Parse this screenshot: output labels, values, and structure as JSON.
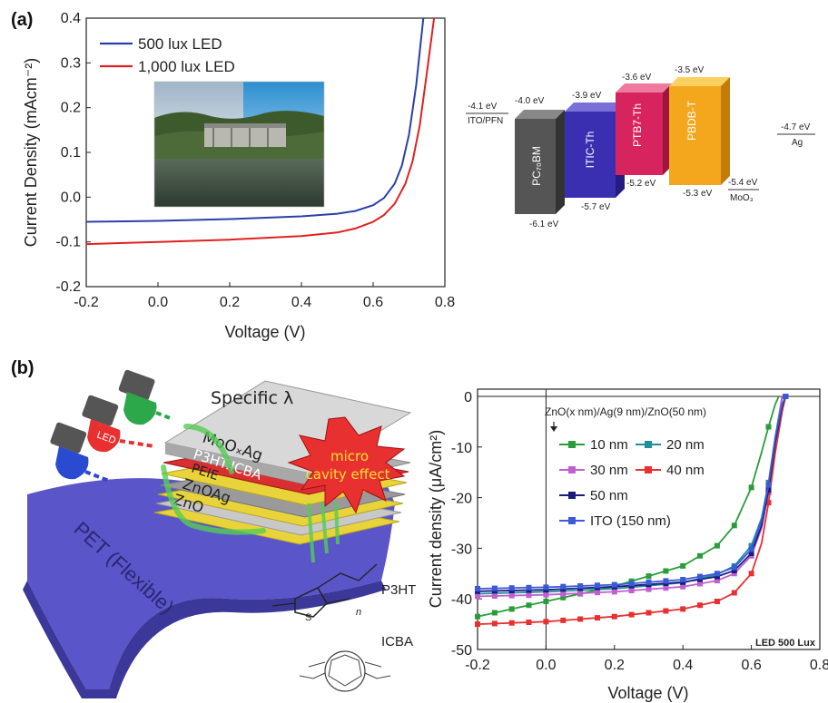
{
  "panels": {
    "a": "(a)",
    "b": "(b)"
  },
  "chart_data": [
    {
      "type": "line",
      "xlabel": "Voltage (V)",
      "ylabel": "Current Density (mAcm⁻²)",
      "xlim": [
        -0.2,
        0.8
      ],
      "ylim": [
        -0.2,
        0.4
      ],
      "xticks": [
        "-0.2",
        "0.0",
        "0.2",
        "0.4",
        "0.6",
        "0.8"
      ],
      "yticks": [
        "-0.2",
        "-0.1",
        "0.0",
        "0.1",
        "0.2",
        "0.3",
        "0.4"
      ],
      "legend_position": "top-left",
      "series": [
        {
          "name": "500 lux LED",
          "color": "#2b3fa8",
          "x": [
            -0.2,
            0.0,
            0.2,
            0.4,
            0.5,
            0.55,
            0.6,
            0.63,
            0.66,
            0.68,
            0.7,
            0.72,
            0.74
          ],
          "y": [
            -0.055,
            -0.053,
            -0.049,
            -0.043,
            -0.037,
            -0.031,
            -0.018,
            -0.002,
            0.03,
            0.07,
            0.14,
            0.25,
            0.4
          ]
        },
        {
          "name": "1,000 lux LED",
          "color": "#e02020",
          "x": [
            -0.2,
            0.0,
            0.2,
            0.4,
            0.5,
            0.55,
            0.6,
            0.63,
            0.66,
            0.69,
            0.71,
            0.73,
            0.75,
            0.77
          ],
          "y": [
            -0.105,
            -0.1,
            -0.095,
            -0.087,
            -0.079,
            -0.07,
            -0.055,
            -0.04,
            -0.015,
            0.03,
            0.08,
            0.16,
            0.28,
            0.4
          ]
        }
      ]
    },
    {
      "type": "line",
      "xlabel": "Voltage (V)",
      "ylabel": "Current density (μA/cm²)",
      "xlim": [
        -0.2,
        0.8
      ],
      "ylim": [
        -50,
        0
      ],
      "xticks": [
        "-0.2",
        "0.0",
        "0.2",
        "0.4",
        "0.6",
        "0.8"
      ],
      "yticks": [
        "0",
        "-10",
        "-20",
        "-30",
        "-40",
        "-50"
      ],
      "annotation": "ZnO(x nm)/Ag(9 nm)/ZnO(50 nm)",
      "corner_note": "LED 500 Lux",
      "legend_position": "top-left",
      "series": [
        {
          "name": "10 nm",
          "color": "#2a9d3a",
          "x": [
            -0.2,
            0.0,
            0.2,
            0.4,
            0.5,
            0.55,
            0.6,
            0.63,
            0.65,
            0.67,
            0.68
          ],
          "y": [
            -43.5,
            -40.5,
            -37.5,
            -33.5,
            -29.5,
            -25.5,
            -18,
            -11,
            -6,
            -1.5,
            0
          ]
        },
        {
          "name": "20 nm",
          "color": "#1f8f9a",
          "x": [
            -0.2,
            0.0,
            0.2,
            0.4,
            0.5,
            0.55,
            0.6,
            0.63,
            0.65,
            0.67,
            0.69
          ],
          "y": [
            -39,
            -38.6,
            -38,
            -36.8,
            -35.2,
            -33.5,
            -29.5,
            -24,
            -17,
            -8,
            0
          ]
        },
        {
          "name": "30 nm",
          "color": "#c060d0",
          "x": [
            -0.2,
            0.0,
            0.2,
            0.4,
            0.5,
            0.55,
            0.6,
            0.63,
            0.65,
            0.67,
            0.69
          ],
          "y": [
            -39.5,
            -39.2,
            -38.6,
            -37.6,
            -36.4,
            -35,
            -31.5,
            -26,
            -19,
            -9,
            0
          ]
        },
        {
          "name": "40 nm",
          "color": "#e83030",
          "x": [
            -0.2,
            0.0,
            0.2,
            0.4,
            0.5,
            0.55,
            0.6,
            0.63,
            0.65,
            0.67,
            0.69,
            0.7
          ],
          "y": [
            -45,
            -44.5,
            -43.5,
            -42,
            -40.5,
            -38.8,
            -35,
            -29,
            -21,
            -11,
            -3,
            0
          ]
        },
        {
          "name": "50 nm",
          "color": "#1c1c80",
          "x": [
            -0.2,
            0.0,
            0.2,
            0.4,
            0.5,
            0.55,
            0.6,
            0.63,
            0.65,
            0.67,
            0.69,
            0.7
          ],
          "y": [
            -38.5,
            -38.2,
            -37.6,
            -36.7,
            -35.6,
            -34.4,
            -31,
            -25.5,
            -18.5,
            -9,
            -2,
            0
          ]
        },
        {
          "name": "ITO (150 nm)",
          "color": "#3a5ad8",
          "x": [
            -0.2,
            0.0,
            0.2,
            0.4,
            0.5,
            0.55,
            0.6,
            0.63,
            0.65,
            0.67,
            0.69,
            0.7
          ],
          "y": [
            -38,
            -37.7,
            -37.2,
            -36.2,
            -35,
            -33.8,
            -30.2,
            -24.5,
            -17.5,
            -8,
            -1.5,
            0
          ]
        }
      ]
    }
  ],
  "energy_diagram": {
    "left_electrode": {
      "label": "ITO/PFN",
      "level": "-4.1 eV"
    },
    "right_electrode": {
      "label": "Ag",
      "level": "-4.7 eV"
    },
    "moo3": {
      "label": "MoO₃",
      "level": "-5.4 eV"
    },
    "blocks": [
      {
        "name": "PC₇₀BM",
        "lumo": "-4.0 eV",
        "homo": "-6.1 eV",
        "color": "#555555"
      },
      {
        "name": "ITIC-Th",
        "lumo": "-3.9 eV",
        "homo": "-5.7 eV",
        "color": "#3a2fb0"
      },
      {
        "name": "PTB7-Th",
        "lumo": "-3.6 eV",
        "homo": "-5.2 eV",
        "color": "#d8245e"
      },
      {
        "name": "PBDB-T",
        "lumo": "-3.5 eV",
        "homo": "-5.3 eV",
        "color": "#f4a61c"
      }
    ]
  },
  "schematic": {
    "leds": [
      "LED"
    ],
    "specific": "Specific λ",
    "layers": [
      "MoOₓAg",
      "P3HT:ICBA",
      "PEIE",
      "ZnOAg",
      "ZnO"
    ],
    "substrate": "PET (Flexible)",
    "burst": [
      "micro",
      "cavity effect"
    ],
    "molecules": [
      "P3HT",
      "ICBA"
    ],
    "n_label": "n",
    "s_label": "S"
  }
}
